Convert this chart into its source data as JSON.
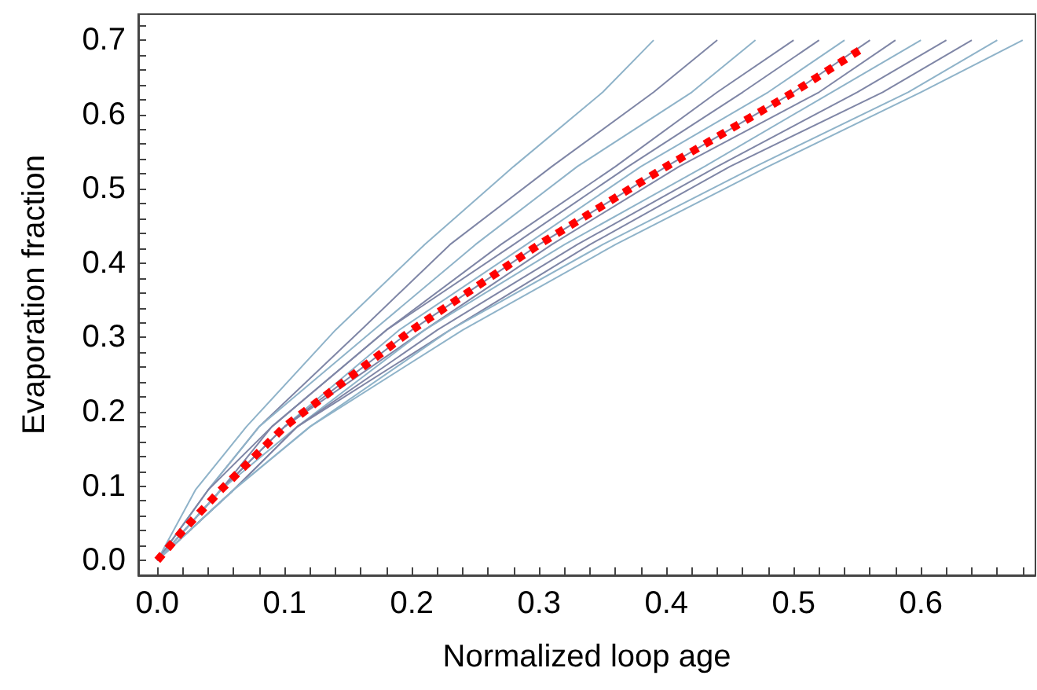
{
  "chart_data": {
    "type": "line",
    "xlabel": "Normalized loop age",
    "ylabel": "Evaporation fraction",
    "xlim": [
      -0.015,
      0.69
    ],
    "ylim": [
      -0.02,
      0.735
    ],
    "xticks": [
      {
        "value": 0,
        "label": "0.0"
      },
      {
        "value": 0.02,
        "label": null
      },
      {
        "value": 0.04,
        "label": null
      },
      {
        "value": 0.06,
        "label": null
      },
      {
        "value": 0.08,
        "label": null
      },
      0.1,
      {
        "value": 0.12,
        "label": null
      },
      {
        "value": 0.14,
        "label": null
      },
      {
        "value": 0.16,
        "label": null
      },
      {
        "value": 0.18,
        "label": null
      },
      0.2,
      {
        "value": 0.22,
        "label": null
      },
      {
        "value": 0.24,
        "label": null
      },
      {
        "value": 0.26,
        "label": null
      },
      {
        "value": 0.28,
        "label": null
      },
      0.3,
      {
        "value": 0.32,
        "label": null
      },
      {
        "value": 0.34,
        "label": null
      },
      {
        "value": 0.36,
        "label": null
      },
      {
        "value": 0.38,
        "label": null
      },
      0.4,
      {
        "value": 0.42,
        "label": null
      },
      {
        "value": 0.44,
        "label": null
      },
      {
        "value": 0.46,
        "label": null
      },
      {
        "value": 0.48,
        "label": null
      },
      0.5,
      {
        "value": 0.52,
        "label": null
      },
      {
        "value": 0.54,
        "label": null
      },
      {
        "value": 0.56,
        "label": null
      },
      {
        "value": 0.58,
        "label": null
      },
      0.6,
      {
        "value": 0.62,
        "label": null
      },
      {
        "value": 0.64,
        "label": null
      },
      {
        "value": 0.66,
        "label": null
      },
      {
        "value": 0.68,
        "label": null
      }
    ],
    "yticks": [
      {
        "value": 0,
        "label": "0.0"
      },
      {
        "value": 0.02,
        "label": null
      },
      {
        "value": 0.04,
        "label": null
      },
      {
        "value": 0.06,
        "label": null
      },
      {
        "value": 0.08,
        "label": null
      },
      0.1,
      {
        "value": 0.12,
        "label": null
      },
      {
        "value": 0.14,
        "label": null
      },
      {
        "value": 0.16,
        "label": null
      },
      {
        "value": 0.18,
        "label": null
      },
      0.2,
      {
        "value": 0.22,
        "label": null
      },
      {
        "value": 0.24,
        "label": null
      },
      {
        "value": 0.26,
        "label": null
      },
      {
        "value": 0.28,
        "label": null
      },
      0.3,
      {
        "value": 0.32,
        "label": null
      },
      {
        "value": 0.34,
        "label": null
      },
      {
        "value": 0.36,
        "label": null
      },
      {
        "value": 0.38,
        "label": null
      },
      0.4,
      {
        "value": 0.42,
        "label": null
      },
      {
        "value": 0.44,
        "label": null
      },
      {
        "value": 0.46,
        "label": null
      },
      {
        "value": 0.48,
        "label": null
      },
      0.5,
      {
        "value": 0.52,
        "label": null
      },
      {
        "value": 0.54,
        "label": null
      },
      {
        "value": 0.56,
        "label": null
      },
      {
        "value": 0.58,
        "label": null
      },
      0.6,
      {
        "value": 0.62,
        "label": null
      },
      {
        "value": 0.64,
        "label": null
      },
      {
        "value": 0.66,
        "label": null
      },
      {
        "value": 0.68,
        "label": null
      },
      0.7,
      {
        "value": 0.72,
        "label": null
      }
    ],
    "grid": false,
    "marker": "none",
    "line_style": "solid",
    "series": [
      {
        "color": "#8fb3c9",
        "x": [
          0,
          0.03,
          0.07,
          0.14,
          0.21,
          0.28,
          0.35,
          0.39
        ],
        "values": [
          0,
          0.095,
          0.18,
          0.31,
          0.425,
          0.53,
          0.63,
          0.7
        ]
      },
      {
        "color": "#7f86a6",
        "x": [
          0,
          0.04,
          0.08,
          0.16,
          0.23,
          0.31,
          0.39,
          0.44
        ],
        "values": [
          0,
          0.095,
          0.18,
          0.31,
          0.425,
          0.53,
          0.63,
          0.7
        ]
      },
      {
        "color": "#8fb3c9",
        "x": [
          0,
          0.04,
          0.08,
          0.17,
          0.25,
          0.33,
          0.42,
          0.47
        ],
        "values": [
          0,
          0.095,
          0.18,
          0.31,
          0.425,
          0.53,
          0.63,
          0.7
        ]
      },
      {
        "color": "#7f86a6",
        "x": [
          0,
          0.04,
          0.09,
          0.18,
          0.27,
          0.36,
          0.44,
          0.5
        ],
        "values": [
          0,
          0.095,
          0.18,
          0.31,
          0.425,
          0.53,
          0.63,
          0.7
        ]
      },
      {
        "color": "#7f86a6",
        "x": [
          0,
          0.05,
          0.09,
          0.18,
          0.28,
          0.37,
          0.46,
          0.52
        ],
        "values": [
          0,
          0.095,
          0.18,
          0.31,
          0.425,
          0.53,
          0.63,
          0.7
        ]
      },
      {
        "color": "#8fb3c9",
        "x": [
          0,
          0.05,
          0.1,
          0.19,
          0.29,
          0.38,
          0.48,
          0.54
        ],
        "values": [
          0,
          0.095,
          0.18,
          0.31,
          0.425,
          0.53,
          0.63,
          0.7
        ]
      },
      {
        "color": "#7f86a6",
        "x": [
          0,
          0.05,
          0.1,
          0.2,
          0.3,
          0.4,
          0.5,
          0.56
        ],
        "values": [
          0,
          0.095,
          0.18,
          0.31,
          0.425,
          0.53,
          0.63,
          0.7
        ]
      },
      {
        "color": "#7f86a6",
        "x": [
          0,
          0.05,
          0.1,
          0.21,
          0.31,
          0.41,
          0.52,
          0.58
        ],
        "values": [
          0,
          0.095,
          0.18,
          0.31,
          0.425,
          0.53,
          0.63,
          0.7
        ]
      },
      {
        "color": "#8fb3c9",
        "x": [
          0,
          0.05,
          0.11,
          0.21,
          0.32,
          0.43,
          0.53,
          0.6
        ],
        "values": [
          0,
          0.095,
          0.18,
          0.31,
          0.425,
          0.53,
          0.63,
          0.7
        ]
      },
      {
        "color": "#7f86a6",
        "x": [
          0,
          0.06,
          0.11,
          0.22,
          0.33,
          0.44,
          0.55,
          0.62
        ],
        "values": [
          0,
          0.095,
          0.18,
          0.31,
          0.425,
          0.53,
          0.63,
          0.7
        ]
      },
      {
        "color": "#7f86a6",
        "x": [
          0,
          0.06,
          0.11,
          0.23,
          0.34,
          0.45,
          0.57,
          0.64
        ],
        "values": [
          0,
          0.095,
          0.18,
          0.31,
          0.425,
          0.53,
          0.63,
          0.7
        ]
      },
      {
        "color": "#8fb3c9",
        "x": [
          0,
          0.06,
          0.12,
          0.23,
          0.35,
          0.47,
          0.59,
          0.66
        ],
        "values": [
          0,
          0.095,
          0.18,
          0.31,
          0.425,
          0.53,
          0.63,
          0.7
        ]
      },
      {
        "color": "#8fb3c9",
        "x": [
          0,
          0.06,
          0.12,
          0.24,
          0.36,
          0.48,
          0.6,
          0.68
        ],
        "values": [
          0,
          0.095,
          0.18,
          0.31,
          0.425,
          0.53,
          0.63,
          0.7
        ]
      },
      {
        "color": "#ff0000",
        "line_style": "dotted",
        "x": [
          0,
          0.02,
          0.05,
          0.1,
          0.2,
          0.3,
          0.4,
          0.5,
          0.555
        ],
        "values": [
          0,
          0.04,
          0.095,
          0.18,
          0.31,
          0.425,
          0.53,
          0.63,
          0.69
        ]
      }
    ]
  }
}
